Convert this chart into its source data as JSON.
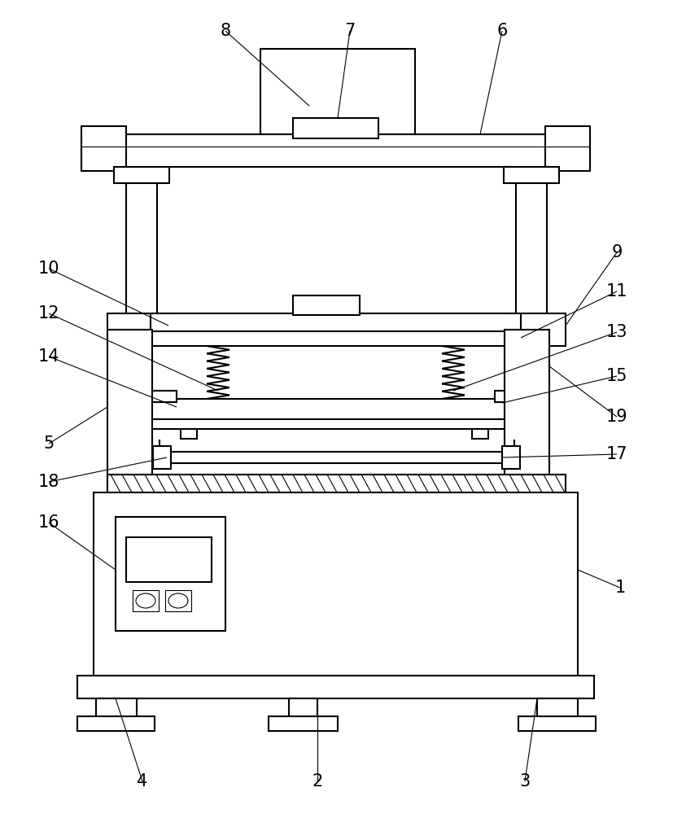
{
  "background_color": "#ffffff",
  "line_color": "#000000",
  "lw": 1.5,
  "lw_thin": 0.8,
  "fig_width": 8.27,
  "fig_height": 10.0
}
